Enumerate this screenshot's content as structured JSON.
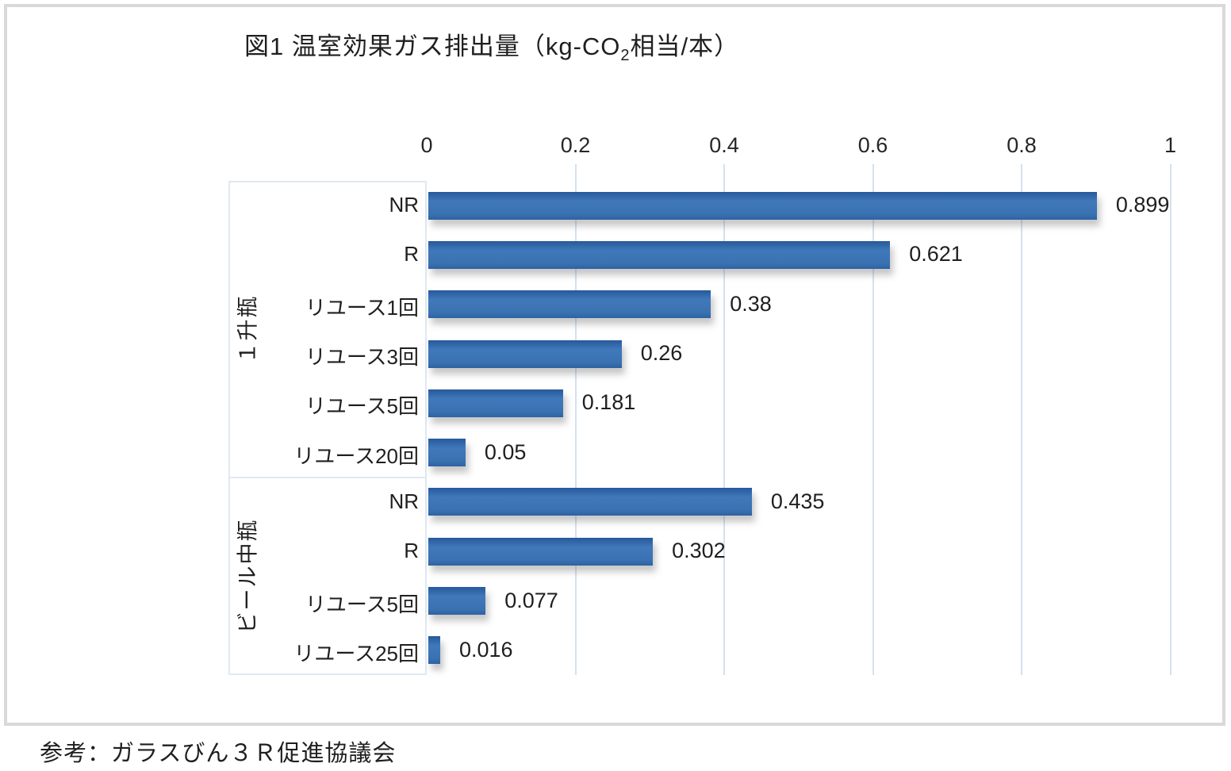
{
  "header": {
    "title_prefix": "図1 温室効果ガス排出量（kg-CO",
    "title_sub": "2",
    "title_suffix": "相当/本）"
  },
  "footer": {
    "text": "参考：ガラスびん３Ｒ促進協議会"
  },
  "chart_data": {
    "type": "bar",
    "orientation": "horizontal",
    "title": "図1 温室効果ガス排出量（kg-CO2相当/本）",
    "source_note": "参考：ガラスびん３Ｒ促進協議会",
    "xlim": [
      0,
      1
    ],
    "x_ticks": [
      0,
      0.2,
      0.4,
      0.6,
      0.8,
      1
    ],
    "x_tick_labels": [
      "0",
      "0.2",
      "0.4",
      "0.6",
      "0.8",
      "1"
    ],
    "grid": true,
    "legend": "none",
    "value_labels_shown": true,
    "groups": [
      {
        "name": "１升瓶",
        "categories": [
          "NR",
          "R",
          "リユース1回",
          "リユース3回",
          "リユース5回",
          "リユース20回"
        ],
        "values": [
          0.899,
          0.621,
          0.38,
          0.26,
          0.181,
          0.05
        ],
        "value_labels": [
          "0.899",
          "0.621",
          "0.38",
          "0.26",
          "0.181",
          "0.05"
        ]
      },
      {
        "name": "ビール中瓶",
        "categories": [
          "NR",
          "R",
          "リユース5回",
          "リユース25回"
        ],
        "values": [
          0.435,
          0.302,
          0.077,
          0.016
        ],
        "value_labels": [
          "0.435",
          "0.302",
          "0.077",
          "0.016"
        ]
      }
    ],
    "colors": {
      "bar": "#3b72b4",
      "bar_gradient_top": "#27599b",
      "gridline": "#d3e1f2",
      "axis_box_border": "#dfe8f4",
      "frame_border": "#d9d9d9",
      "text": "#1f1f1f"
    }
  }
}
